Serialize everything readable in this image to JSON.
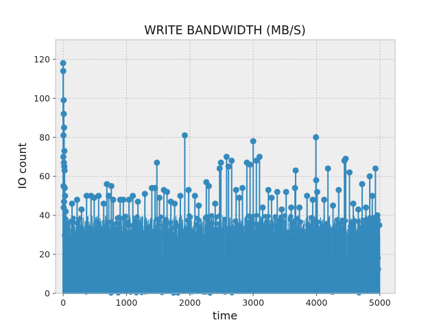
{
  "chart_data": {
    "type": "stem",
    "title": "WRITE BANDWIDTH (MB/S)",
    "xlabel": "time",
    "ylabel": "IO count",
    "xlim": [
      -120,
      5240
    ],
    "ylim": [
      0,
      130
    ],
    "xticks": [
      0,
      1000,
      2000,
      3000,
      4000,
      5000
    ],
    "yticks": [
      0,
      20,
      40,
      60,
      80,
      100,
      120
    ],
    "grid": true,
    "colors": {
      "series": "#348abd",
      "background": "#eeeeee",
      "grid": "#b2b2b2",
      "frame": "#bcbcbc"
    },
    "series": [
      {
        "x_range": [
          0,
          5000
        ],
        "dense_band_max": 40,
        "peaks": [
          {
            "x": 0,
            "y": 118
          },
          {
            "x": 2,
            "y": 114
          },
          {
            "x": 8,
            "y": 99
          },
          {
            "x": 10,
            "y": 92
          },
          {
            "x": 15,
            "y": 85
          },
          {
            "x": 5,
            "y": 81
          },
          {
            "x": 20,
            "y": 73
          },
          {
            "x": 3,
            "y": 70
          },
          {
            "x": 12,
            "y": 67
          },
          {
            "x": 18,
            "y": 65
          },
          {
            "x": 22,
            "y": 63
          },
          {
            "x": 6,
            "y": 55
          },
          {
            "x": 25,
            "y": 54
          },
          {
            "x": 30,
            "y": 50
          },
          {
            "x": 14,
            "y": 47
          },
          {
            "x": 9,
            "y": 44
          },
          {
            "x": 40,
            "y": 42
          },
          {
            "x": 35,
            "y": 38
          },
          {
            "x": 45,
            "y": 36
          },
          {
            "x": 140,
            "y": 46
          },
          {
            "x": 220,
            "y": 48
          },
          {
            "x": 290,
            "y": 43
          },
          {
            "x": 370,
            "y": 50
          },
          {
            "x": 440,
            "y": 50
          },
          {
            "x": 490,
            "y": 49
          },
          {
            "x": 560,
            "y": 50
          },
          {
            "x": 640,
            "y": 46
          },
          {
            "x": 690,
            "y": 56
          },
          {
            "x": 720,
            "y": 50
          },
          {
            "x": 760,
            "y": 55
          },
          {
            "x": 790,
            "y": 48
          },
          {
            "x": 900,
            "y": 48
          },
          {
            "x": 950,
            "y": 48
          },
          {
            "x": 1040,
            "y": 48
          },
          {
            "x": 1100,
            "y": 50
          },
          {
            "x": 1180,
            "y": 47
          },
          {
            "x": 1290,
            "y": 51
          },
          {
            "x": 1400,
            "y": 54
          },
          {
            "x": 1450,
            "y": 54
          },
          {
            "x": 1480,
            "y": 67
          },
          {
            "x": 1520,
            "y": 49
          },
          {
            "x": 1590,
            "y": 53
          },
          {
            "x": 1640,
            "y": 52
          },
          {
            "x": 1700,
            "y": 47
          },
          {
            "x": 1760,
            "y": 46
          },
          {
            "x": 1850,
            "y": 50
          },
          {
            "x": 1920,
            "y": 81
          },
          {
            "x": 1980,
            "y": 53
          },
          {
            "x": 2080,
            "y": 50
          },
          {
            "x": 2140,
            "y": 45
          },
          {
            "x": 2260,
            "y": 57
          },
          {
            "x": 2300,
            "y": 55
          },
          {
            "x": 2400,
            "y": 46
          },
          {
            "x": 2470,
            "y": 64
          },
          {
            "x": 2490,
            "y": 67
          },
          {
            "x": 2580,
            "y": 70
          },
          {
            "x": 2610,
            "y": 65
          },
          {
            "x": 2660,
            "y": 68
          },
          {
            "x": 2730,
            "y": 53
          },
          {
            "x": 2780,
            "y": 49
          },
          {
            "x": 2830,
            "y": 54
          },
          {
            "x": 2900,
            "y": 67
          },
          {
            "x": 2950,
            "y": 66
          },
          {
            "x": 3000,
            "y": 78
          },
          {
            "x": 3050,
            "y": 68
          },
          {
            "x": 3100,
            "y": 70
          },
          {
            "x": 3150,
            "y": 44
          },
          {
            "x": 3240,
            "y": 53
          },
          {
            "x": 3290,
            "y": 49
          },
          {
            "x": 3380,
            "y": 52
          },
          {
            "x": 3450,
            "y": 43
          },
          {
            "x": 3520,
            "y": 52
          },
          {
            "x": 3600,
            "y": 44
          },
          {
            "x": 3670,
            "y": 63
          },
          {
            "x": 3660,
            "y": 54
          },
          {
            "x": 3730,
            "y": 44
          },
          {
            "x": 3850,
            "y": 50
          },
          {
            "x": 3940,
            "y": 48
          },
          {
            "x": 3990,
            "y": 80
          },
          {
            "x": 3995,
            "y": 58
          },
          {
            "x": 4010,
            "y": 52
          },
          {
            "x": 4120,
            "y": 48
          },
          {
            "x": 4180,
            "y": 64
          },
          {
            "x": 4260,
            "y": 45
          },
          {
            "x": 4350,
            "y": 53
          },
          {
            "x": 4440,
            "y": 68
          },
          {
            "x": 4460,
            "y": 69
          },
          {
            "x": 4520,
            "y": 62
          },
          {
            "x": 4580,
            "y": 46
          },
          {
            "x": 4660,
            "y": 43
          },
          {
            "x": 4720,
            "y": 56
          },
          {
            "x": 4780,
            "y": 44
          },
          {
            "x": 4840,
            "y": 60
          },
          {
            "x": 4880,
            "y": 50
          },
          {
            "x": 4930,
            "y": 64
          },
          {
            "x": 4960,
            "y": 40
          },
          {
            "x": 4990,
            "y": 35
          }
        ]
      }
    ]
  }
}
